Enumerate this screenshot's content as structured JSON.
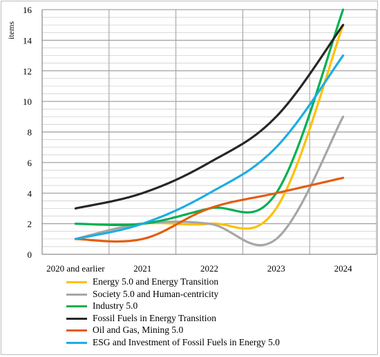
{
  "chart_data": {
    "type": "line",
    "title": "",
    "xlabel": "",
    "ylabel": "items",
    "categories": [
      "2020 and earlier",
      "2021",
      "2022",
      "2023",
      "2024"
    ],
    "ylim": [
      0,
      16
    ],
    "yticks": [
      0,
      2,
      4,
      6,
      8,
      10,
      12,
      14,
      16
    ],
    "grid": true,
    "legend_position": "bottom",
    "series": [
      {
        "name": "Energy  5.0 and Energy Transition",
        "color": "#FFC000",
        "values": [
          1,
          2,
          2,
          3,
          15
        ]
      },
      {
        "name": "Society 5.0 and Human-centricity",
        "color": "#A6A6A6",
        "values": [
          1,
          2,
          2,
          1,
          9
        ]
      },
      {
        "name": "Industry 5.0",
        "color": "#00B050",
        "values": [
          2,
          2,
          3,
          4,
          16
        ]
      },
      {
        "name": "Fossil Fuels in  Energy Transition",
        "color": "#262626",
        "values": [
          3,
          4,
          6,
          9,
          15
        ]
      },
      {
        "name": "Oil and Gas, Mining 5.0",
        "color": "#E35D0F",
        "values": [
          1,
          1,
          3,
          4,
          5
        ]
      },
      {
        "name": "ESG and Investment of Fossil Fuels in Energy 5.0",
        "color": "#1CADE4",
        "values": [
          1,
          2,
          4,
          7,
          13
        ]
      }
    ]
  }
}
